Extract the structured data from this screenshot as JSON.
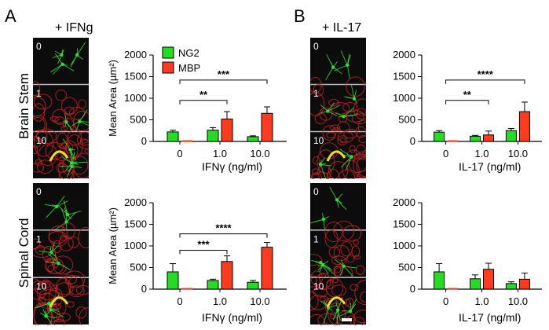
{
  "figure": {
    "panel_a_letter": "A",
    "panel_b_letter": "B",
    "panel_a_treatment": "+ IFNg",
    "panel_b_treatment": "+ IL-17",
    "row_labels": [
      "Brain Stem",
      "Spinal Cord"
    ],
    "micrograph_labels": [
      "0",
      "1",
      "10"
    ]
  },
  "colors": {
    "ng2": "#22dd22",
    "mbp": "#ff3b1f",
    "micro_bg": "#0c0c0c",
    "cell_green": "#33dd33",
    "cell_red": "#cc2222",
    "cell_yellow": "#eedd22"
  },
  "chart_data": [
    {
      "type": "bar",
      "panel": "A-top",
      "categories": [
        "0",
        "1.0",
        "10.0"
      ],
      "series": [
        {
          "name": "NG2",
          "values": [
            220,
            260,
            110
          ],
          "errors": [
            40,
            60,
            20
          ]
        },
        {
          "name": "MBP",
          "values": [
            0,
            520,
            650
          ],
          "errors": [
            0,
            170,
            150
          ]
        }
      ],
      "xlabel": "IFNγ (ng/ml)",
      "ylabel": "Mean Area (µm²)",
      "ylim": [
        0,
        2000
      ],
      "yticks": [
        "0",
        "500",
        "1000",
        "1500",
        "2000"
      ],
      "legend": [
        "NG2",
        "MBP"
      ],
      "legend_position": "top-left",
      "significance": [
        {
          "from": "0",
          "to": "1.0",
          "label": "**"
        },
        {
          "from": "0",
          "to": "10.0",
          "label": "***"
        }
      ]
    },
    {
      "type": "bar",
      "panel": "B-top",
      "categories": [
        "0",
        "1.0",
        "10.0"
      ],
      "series": [
        {
          "name": "NG2",
          "values": [
            215,
            120,
            250
          ],
          "errors": [
            35,
            20,
            50
          ]
        },
        {
          "name": "MBP",
          "values": [
            0,
            150,
            690
          ],
          "errors": [
            0,
            90,
            220
          ]
        }
      ],
      "xlabel": "IL-17 (ng/ml)",
      "ylabel": "",
      "ylim": [
        0,
        2000
      ],
      "yticks": [
        "0",
        "500",
        "1000",
        "1500",
        "2000"
      ],
      "significance": [
        {
          "from": "0",
          "to": "1.0",
          "label": "**"
        },
        {
          "from": "0",
          "to": "10.0",
          "label": "****"
        }
      ]
    },
    {
      "type": "bar",
      "panel": "A-bottom",
      "categories": [
        "0",
        "1.0",
        "10.0"
      ],
      "series": [
        {
          "name": "NG2",
          "values": [
            400,
            200,
            160
          ],
          "errors": [
            190,
            30,
            40
          ]
        },
        {
          "name": "MBP",
          "values": [
            0,
            640,
            970
          ],
          "errors": [
            0,
            130,
            110
          ]
        }
      ],
      "xlabel": "IFNγ (ng/ml)",
      "ylabel": "Mean Area (µm²)",
      "ylim": [
        0,
        2000
      ],
      "yticks": [
        "0",
        "500",
        "1000",
        "1500",
        "2000"
      ],
      "significance": [
        {
          "from": "0",
          "to": "1.0",
          "label": "***"
        },
        {
          "from": "0",
          "to": "10.0",
          "label": "****"
        }
      ]
    },
    {
      "type": "bar",
      "panel": "B-bottom",
      "categories": [
        "0",
        "1.0",
        "10.0"
      ],
      "series": [
        {
          "name": "NG2",
          "values": [
            400,
            240,
            130
          ],
          "errors": [
            190,
            90,
            40
          ]
        },
        {
          "name": "MBP",
          "values": [
            0,
            460,
            230
          ],
          "errors": [
            0,
            140,
            140
          ]
        }
      ],
      "xlabel": "IL-17 (ng/ml)",
      "ylabel": "",
      "ylim": [
        0,
        2000
      ],
      "yticks": [
        "0",
        "500",
        "1000",
        "1500",
        "2000"
      ],
      "significance": []
    }
  ]
}
